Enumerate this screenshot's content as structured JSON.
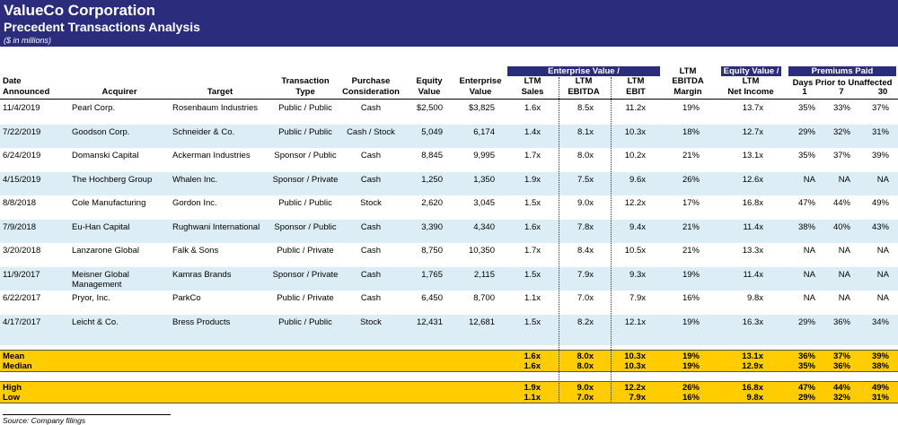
{
  "header": {
    "title": "ValueCo Corporation",
    "subtitle": "Precedent Transactions Analysis",
    "units": "($ in millions)"
  },
  "table": {
    "group_headers": {
      "enterprise_value": "Enterprise Value /",
      "equity_value": "Equity Value /",
      "premiums_paid": "Premiums Paid",
      "days_prior": "Days Prior to Unaffected"
    },
    "columns": [
      [
        "Date",
        "Announced"
      ],
      [
        "Acquirer"
      ],
      [
        "Target"
      ],
      [
        "Transaction",
        "Type"
      ],
      [
        "Purchase",
        "Consideration"
      ],
      [
        "Equity",
        "Value"
      ],
      [
        "Enterprise",
        "Value"
      ],
      [
        "LTM",
        "Sales"
      ],
      [
        "LTM",
        "EBITDA"
      ],
      [
        "LTM",
        "EBIT"
      ],
      [
        "LTM",
        "EBITDA",
        "Margin"
      ],
      [
        "LTM",
        "Net Income"
      ],
      [
        "1"
      ],
      [
        "7"
      ],
      [
        "30"
      ]
    ],
    "rows": [
      [
        "11/4/2019",
        "Pearl Corp.",
        "Rosenbaum Industries",
        "Public / Public",
        "Cash",
        "$2,500",
        "$3,825",
        "1.6x",
        "8.5x",
        "11.2x",
        "19%",
        "13.7x",
        "35%",
        "33%",
        "37%"
      ],
      [
        "7/22/2019",
        "Goodson Corp.",
        "Schneider & Co.",
        "Public / Public",
        "Cash / Stock",
        "5,049",
        "6,174",
        "1.4x",
        "8.1x",
        "10.3x",
        "18%",
        "12.7x",
        "29%",
        "32%",
        "31%"
      ],
      [
        "6/24/2019",
        "Domanski Capital",
        "Ackerman Industries",
        "Sponsor / Public",
        "Cash",
        "8,845",
        "9,995",
        "1.7x",
        "8.0x",
        "10.2x",
        "21%",
        "13.1x",
        "35%",
        "37%",
        "39%"
      ],
      [
        "4/15/2019",
        "The Hochberg Group",
        "Whalen Inc.",
        "Sponsor / Private",
        "Cash",
        "1,250",
        "1,350",
        "1.9x",
        "7.5x",
        "9.6x",
        "26%",
        "12.6x",
        "NA",
        "NA",
        "NA"
      ],
      [
        "8/8/2018",
        "Cole Manufacturing",
        "Gordon Inc.",
        "Public / Public",
        "Stock",
        "2,620",
        "3,045",
        "1.5x",
        "9.0x",
        "12.2x",
        "17%",
        "16.8x",
        "47%",
        "44%",
        "49%"
      ],
      [
        "7/9/2018",
        "Eu-Han Capital",
        "Rughwani International",
        "Sponsor / Public",
        "Cash",
        "3,390",
        "4,340",
        "1.6x",
        "7.8x",
        "9.4x",
        "21%",
        "11.4x",
        "38%",
        "40%",
        "43%"
      ],
      [
        "3/20/2018",
        "Lanzarone Global",
        "Falk & Sons",
        "Public / Private",
        "Cash",
        "8,750",
        "10,350",
        "1.7x",
        "8.4x",
        "10.5x",
        "21%",
        "13.3x",
        "NA",
        "NA",
        "NA"
      ],
      [
        "11/9/2017",
        "Meisner Global Management",
        "Kamras Brands",
        "Sponsor / Private",
        "Cash",
        "1,765",
        "2,115",
        "1.5x",
        "7.9x",
        "9.3x",
        "19%",
        "11.4x",
        "NA",
        "NA",
        "NA"
      ],
      [
        "6/22/2017",
        "Pryor, Inc.",
        "ParkCo",
        "Public / Private",
        "Cash",
        "6,450",
        "8,700",
        "1.1x",
        "7.0x",
        "7.9x",
        "16%",
        "9.8x",
        "NA",
        "NA",
        "NA"
      ],
      [
        "4/17/2017",
        "Leicht & Co.",
        "Bress Products",
        "Public / Public",
        "Stock",
        "12,431",
        "12,681",
        "1.5x",
        "8.2x",
        "12.1x",
        "19%",
        "16.3x",
        "29%",
        "36%",
        "34%"
      ]
    ],
    "summary": [
      {
        "label": "Mean",
        "values": [
          "1.6x",
          "8.0x",
          "10.3x",
          "19%",
          "13.1x",
          "36%",
          "37%",
          "39%"
        ]
      },
      {
        "label": "Median",
        "values": [
          "1.6x",
          "8.0x",
          "10.3x",
          "19%",
          "12.9x",
          "35%",
          "36%",
          "38%"
        ]
      },
      {
        "label": "High",
        "values": [
          "1.9x",
          "9.0x",
          "12.2x",
          "26%",
          "16.8x",
          "47%",
          "44%",
          "49%"
        ]
      },
      {
        "label": "Low",
        "values": [
          "1.1x",
          "7.0x",
          "7.9x",
          "16%",
          "9.8x",
          "29%",
          "32%",
          "31%"
        ]
      }
    ]
  },
  "footnote": "Source: Company filings"
}
